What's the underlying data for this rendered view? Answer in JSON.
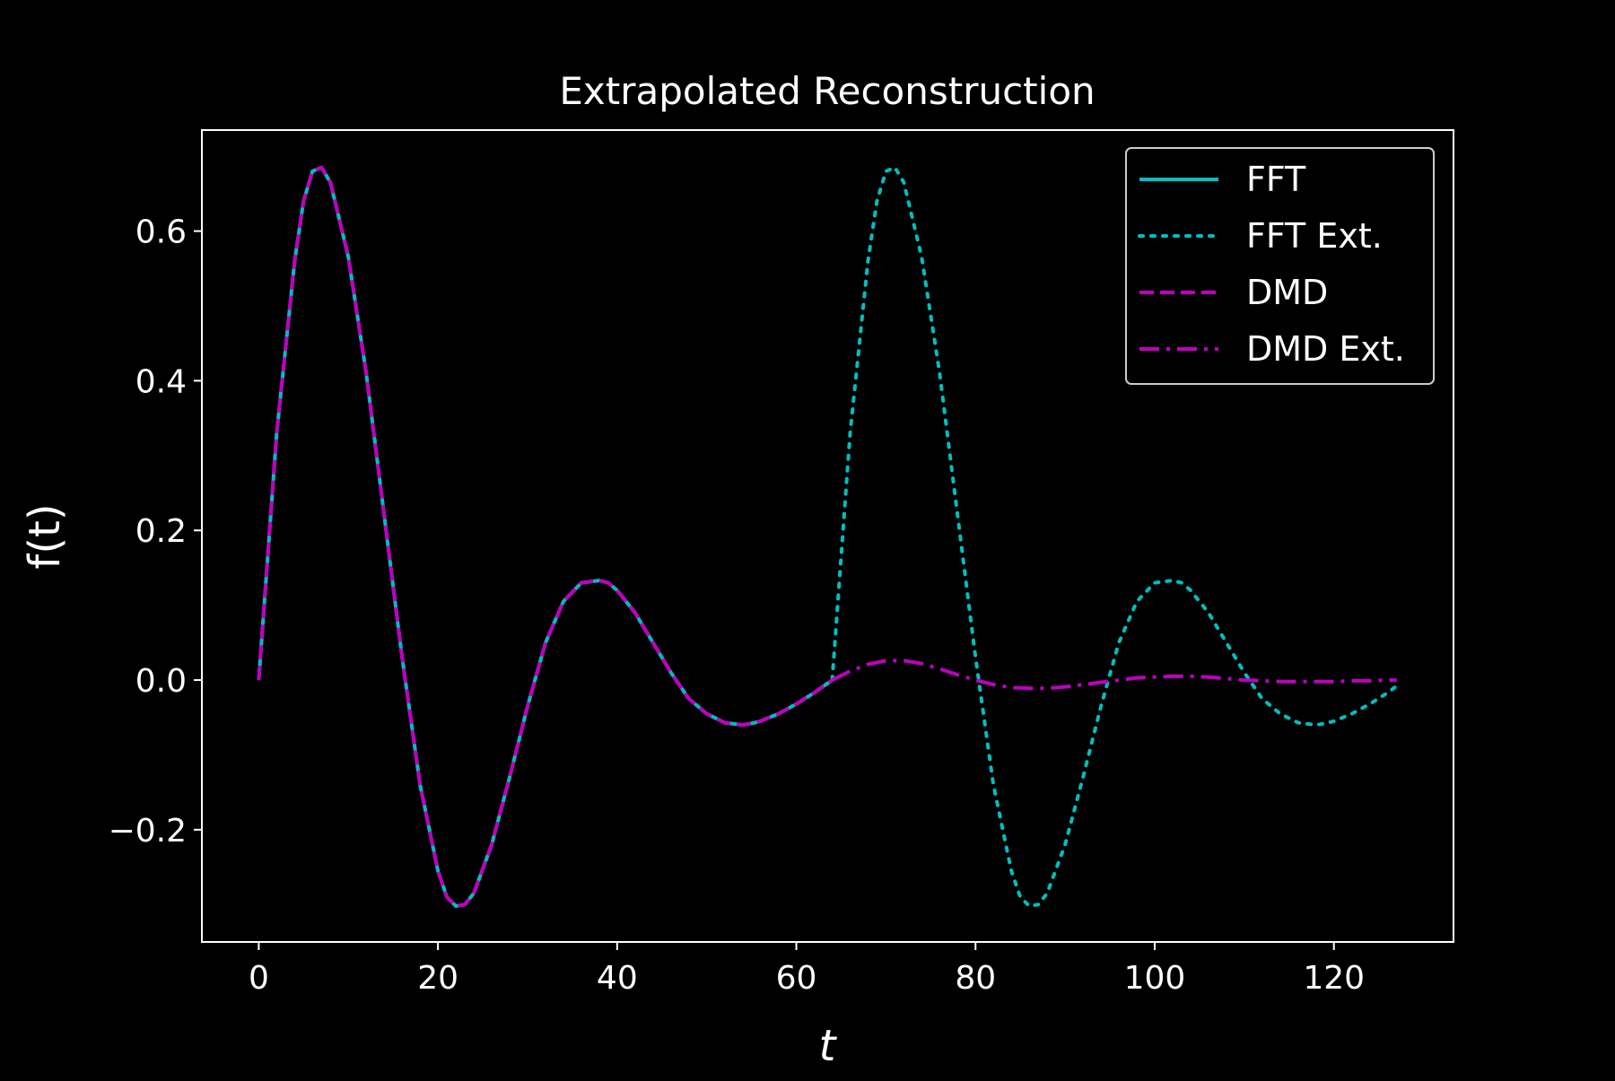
{
  "chart_data": {
    "type": "line",
    "title": "Extrapolated Reconstruction",
    "xlabel": "t",
    "ylabel": "f(t)",
    "xlim": [
      -6.35,
      133.35
    ],
    "ylim": [
      -0.35,
      0.735
    ],
    "xticks": [
      0,
      20,
      40,
      60,
      80,
      100,
      120
    ],
    "xtick_labels": [
      "0",
      "20",
      "40",
      "60",
      "80",
      "100",
      "120"
    ],
    "yticks": [
      -0.2,
      0.0,
      0.2,
      0.4,
      0.6
    ],
    "ytick_labels": [
      "−0.2",
      "0.0",
      "0.2",
      "0.4",
      "0.6"
    ],
    "legend_position": "top-right",
    "grid": false,
    "background": "#000000",
    "series": [
      {
        "name": "FFT",
        "color": "#00bfbf",
        "linestyle": "solid",
        "x": [
          0,
          2,
          4,
          5,
          6,
          7,
          8,
          10,
          12,
          14,
          16,
          18,
          20,
          21,
          22,
          23,
          24,
          26,
          28,
          30,
          32,
          34,
          36,
          38,
          39,
          40,
          42,
          44,
          46,
          48,
          50,
          52,
          54,
          55,
          56,
          58,
          60,
          62,
          64
        ],
        "y": [
          0.0,
          0.33,
          0.56,
          0.64,
          0.68,
          0.685,
          0.665,
          0.565,
          0.41,
          0.22,
          0.03,
          -0.14,
          -0.255,
          -0.29,
          -0.302,
          -0.3,
          -0.285,
          -0.22,
          -0.13,
          -0.035,
          0.05,
          0.105,
          0.13,
          0.133,
          0.13,
          0.12,
          0.09,
          0.05,
          0.01,
          -0.025,
          -0.045,
          -0.057,
          -0.06,
          -0.058,
          -0.055,
          -0.045,
          -0.032,
          -0.017,
          0.0
        ]
      },
      {
        "name": "FFT Ext.",
        "color": "#00bfbf",
        "linestyle": "dotted",
        "x": [
          64,
          66,
          68,
          69,
          70,
          71,
          72,
          74,
          76,
          78,
          80,
          82,
          84,
          85,
          86,
          87,
          88,
          90,
          92,
          94,
          96,
          98,
          100,
          102,
          103,
          104,
          106,
          108,
          110,
          112,
          114,
          116,
          118,
          119,
          120,
          122,
          124,
          126,
          127
        ],
        "y": [
          0.0,
          0.33,
          0.56,
          0.64,
          0.68,
          0.685,
          0.665,
          0.565,
          0.41,
          0.22,
          0.03,
          -0.14,
          -0.255,
          -0.29,
          -0.302,
          -0.3,
          -0.285,
          -0.22,
          -0.13,
          -0.035,
          0.05,
          0.105,
          0.13,
          0.133,
          0.13,
          0.12,
          0.09,
          0.05,
          0.01,
          -0.025,
          -0.045,
          -0.057,
          -0.06,
          -0.058,
          -0.055,
          -0.045,
          -0.032,
          -0.017,
          -0.008
        ]
      },
      {
        "name": "DMD",
        "color": "#bf00bf",
        "linestyle": "dashed",
        "x": [
          0,
          2,
          4,
          5,
          6,
          7,
          8,
          10,
          12,
          14,
          16,
          18,
          20,
          21,
          22,
          23,
          24,
          26,
          28,
          30,
          32,
          34,
          36,
          38,
          39,
          40,
          42,
          44,
          46,
          48,
          50,
          52,
          54,
          55,
          56,
          58,
          60,
          62,
          64
        ],
        "y": [
          0.0,
          0.33,
          0.56,
          0.64,
          0.68,
          0.685,
          0.665,
          0.565,
          0.41,
          0.22,
          0.03,
          -0.14,
          -0.255,
          -0.29,
          -0.302,
          -0.3,
          -0.285,
          -0.22,
          -0.13,
          -0.035,
          0.05,
          0.105,
          0.13,
          0.133,
          0.13,
          0.12,
          0.09,
          0.05,
          0.01,
          -0.025,
          -0.045,
          -0.057,
          -0.06,
          -0.058,
          -0.055,
          -0.045,
          -0.032,
          -0.017,
          0.0
        ]
      },
      {
        "name": "DMD Ext.",
        "color": "#bf00bf",
        "linestyle": "dashdot",
        "x": [
          64,
          66,
          68,
          70,
          72,
          74,
          76,
          78,
          80,
          82,
          84,
          86,
          88,
          90,
          92,
          94,
          96,
          98,
          100,
          102,
          104,
          106,
          108,
          110,
          112,
          114,
          116,
          118,
          120,
          122,
          124,
          126,
          127
        ],
        "y": [
          0.0,
          0.012,
          0.021,
          0.026,
          0.026,
          0.022,
          0.015,
          0.007,
          0.0,
          -0.006,
          -0.01,
          -0.011,
          -0.011,
          -0.009,
          -0.006,
          -0.003,
          0.0,
          0.003,
          0.004,
          0.005,
          0.005,
          0.004,
          0.002,
          0.0,
          -0.001,
          -0.002,
          -0.002,
          -0.002,
          -0.002,
          -0.001,
          -0.001,
          0.0,
          0.0
        ]
      }
    ]
  }
}
